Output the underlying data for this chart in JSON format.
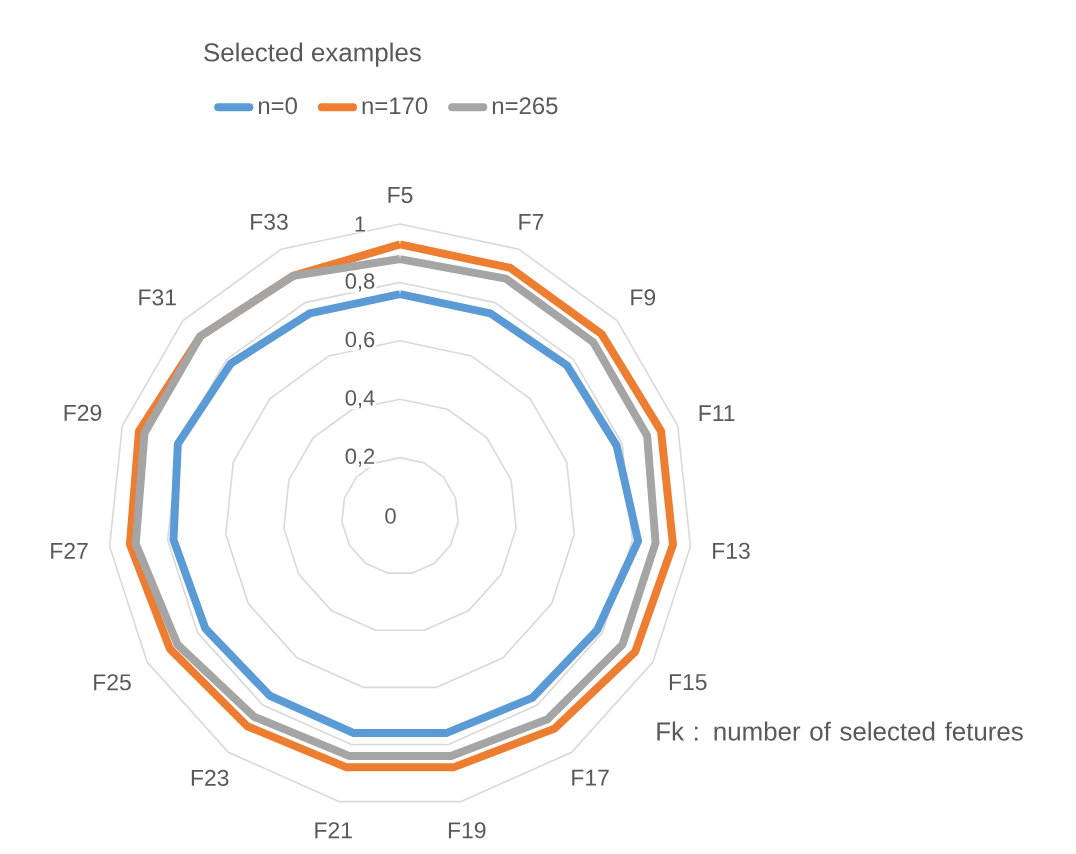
{
  "chart_data": {
    "type": "radar",
    "legend_title": "Selected examples",
    "legend": "top",
    "grid": true,
    "categories": [
      "F5",
      "F7",
      "F9",
      "F11",
      "F13",
      "F15",
      "F17",
      "F19",
      "F21",
      "F23",
      "F25",
      "F27",
      "F29",
      "F31",
      "F33"
    ],
    "ylim": [
      0,
      1
    ],
    "yticks": [
      0,
      {
        "value": 0.2,
        "label": "0,2"
      },
      {
        "value": 0.4,
        "label": "0,4"
      },
      {
        "value": 0.6,
        "label": "0,6"
      },
      {
        "value": 0.8,
        "label": "0,8"
      },
      1
    ],
    "series": [
      {
        "name": "n=0",
        "color": "#5b9bd5",
        "values": [
          0.76,
          0.76,
          0.77,
          0.78,
          0.82,
          0.78,
          0.77,
          0.76,
          0.76,
          0.76,
          0.77,
          0.78,
          0.8,
          0.78,
          0.76
        ]
      },
      {
        "name": "n=170",
        "color": "#ed7d31",
        "values": [
          0.93,
          0.93,
          0.93,
          0.94,
          0.94,
          0.93,
          0.9,
          0.88,
          0.88,
          0.89,
          0.91,
          0.93,
          0.94,
          0.92,
          0.9
        ]
      },
      {
        "name": "n=265",
        "color": "#a5a5a5",
        "values": [
          0.88,
          0.89,
          0.89,
          0.89,
          0.88,
          0.88,
          0.86,
          0.84,
          0.84,
          0.85,
          0.88,
          0.91,
          0.92,
          0.92,
          0.9
        ]
      }
    ],
    "annotations": [
      "Fk : number of selected fetures"
    ]
  }
}
